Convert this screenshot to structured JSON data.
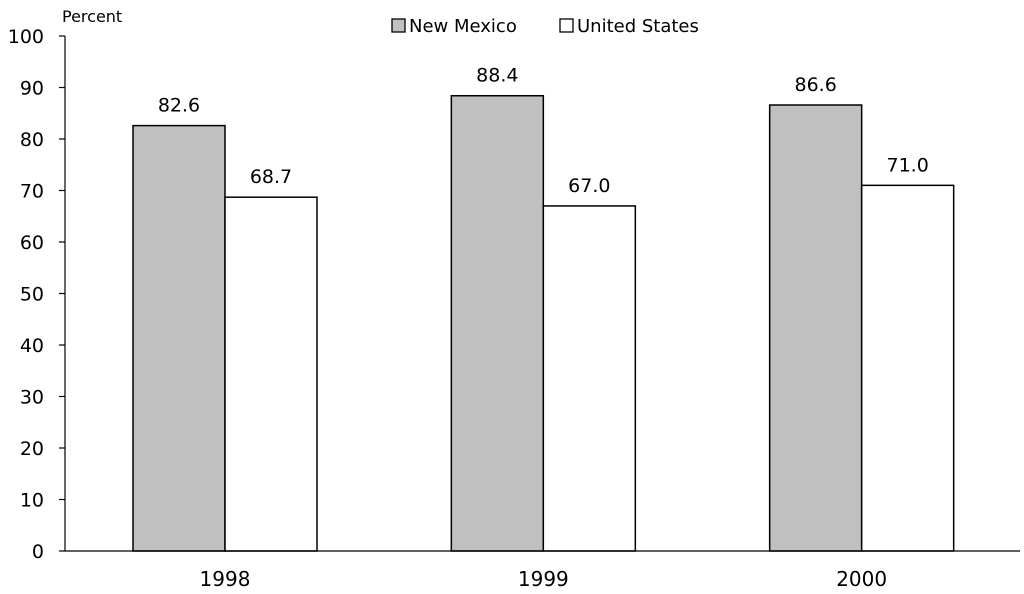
{
  "chart_data": {
    "type": "bar",
    "title": "",
    "xlabel": "",
    "ylabel": "Percent",
    "ylim": [
      0,
      100
    ],
    "yticks": [
      0,
      10,
      20,
      30,
      40,
      50,
      60,
      70,
      80,
      90,
      100
    ],
    "categories": [
      "1998",
      "1999",
      "2000"
    ],
    "series": [
      {
        "name": "New Mexico",
        "values": [
          82.6,
          88.4,
          86.6
        ],
        "labels": [
          "82.6",
          "88.4",
          "86.6"
        ],
        "color": "#c0c0c0"
      },
      {
        "name": "United States",
        "values": [
          68.7,
          67.0,
          71.0
        ],
        "labels": [
          "68.7",
          "67.0",
          "71.0"
        ],
        "color": "#ffffff"
      }
    ],
    "grid": false,
    "legend": "top-center"
  }
}
